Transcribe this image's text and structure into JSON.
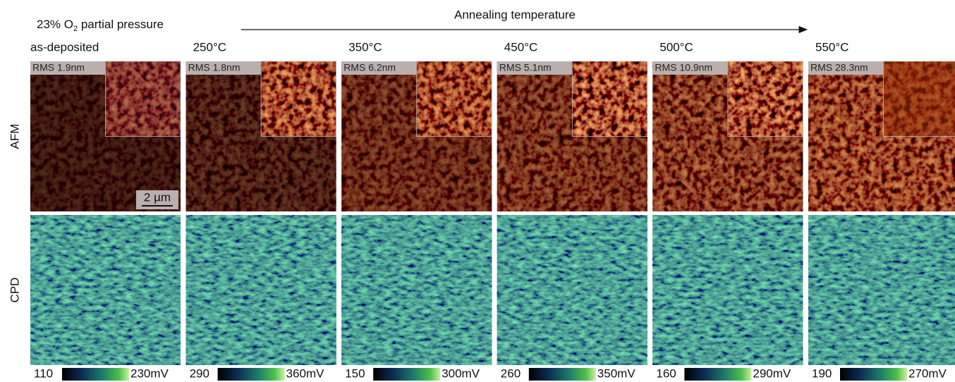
{
  "header": {
    "condition_prefix": "23% O",
    "condition_subscript": "2",
    "condition_suffix": " partial pressure",
    "axis_label": "Annealing temperature"
  },
  "rows": [
    "AFM",
    "CPD"
  ],
  "scale_bar": "2 µm",
  "columns": [
    {
      "label": "as-deposited",
      "rms": "RMS 1.9nm",
      "cbar_min": "110",
      "cbar_max": "230mV"
    },
    {
      "label": "250°C",
      "rms": "RMS 1.8nm",
      "cbar_min": "290",
      "cbar_max": "360mV"
    },
    {
      "label": "350°C",
      "rms": "RMS 6.2nm",
      "cbar_min": "150",
      "cbar_max": "300mV"
    },
    {
      "label": "450°C",
      "rms": "RMS 5.1nm",
      "cbar_min": "260",
      "cbar_max": "350mV"
    },
    {
      "label": "500°C",
      "rms": "RMS 10.9nm",
      "cbar_min": "160",
      "cbar_max": "290mV"
    },
    {
      "label": "550°C",
      "rms": "RMS 28.3nm",
      "cbar_min": "190",
      "cbar_max": "270mV"
    }
  ]
}
